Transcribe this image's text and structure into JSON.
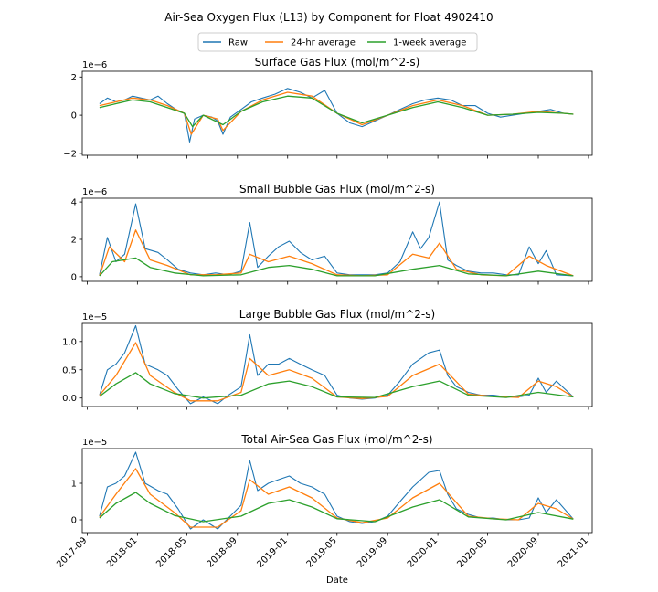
{
  "figure": {
    "title": "Air-Sea Oxygen Flux (L13) by Component for Float 4902410",
    "xlabel": "Date"
  },
  "legend": {
    "placement": "top-center",
    "entries": [
      {
        "name": "Raw",
        "color": "#1f77b4"
      },
      {
        "name": "24-hr average",
        "color": "#ff7f0e"
      },
      {
        "name": "1-week average",
        "color": "#2ca02c"
      }
    ]
  },
  "x_axis": {
    "type": "date",
    "range": [
      "2017-08-20",
      "2021-01-10"
    ],
    "ticks": [
      "2017-09",
      "2018-01",
      "2018-05",
      "2018-09",
      "2019-01",
      "2019-05",
      "2019-09",
      "2020-01",
      "2020-05",
      "2020-09",
      "2021-01"
    ],
    "tick_label_rotation": 45,
    "tick_labels_on_last_panel_only": true
  },
  "chart_data": [
    {
      "type": "line",
      "title": "Surface Gas Flux (mol/m^2-s)",
      "offset_label": "1e−6",
      "ylim": [
        -2.1,
        2.3
      ],
      "yticks": [
        -2,
        0,
        2
      ],
      "ytick_labels": [
        "−2",
        "0",
        "2"
      ],
      "series": [
        {
          "name": "Raw",
          "color": "#1f77b4",
          "x": [
            "2017-10-01",
            "2017-10-20",
            "2017-11-10",
            "2017-12-01",
            "2017-12-20",
            "2018-01-10",
            "2018-02-01",
            "2018-02-20",
            "2018-03-15",
            "2018-04-05",
            "2018-04-25",
            "2018-05-08",
            "2018-05-20",
            "2018-06-10",
            "2018-07-01",
            "2018-07-15",
            "2018-07-28",
            "2018-08-15",
            "2018-09-10",
            "2018-10-05",
            "2018-11-01",
            "2018-12-01",
            "2019-01-01",
            "2019-02-01",
            "2019-03-01",
            "2019-04-01",
            "2019-05-01",
            "2019-06-01",
            "2019-07-01",
            "2019-08-01",
            "2019-09-01",
            "2019-10-01",
            "2019-11-01",
            "2019-12-01",
            "2020-01-01",
            "2020-02-01",
            "2020-03-01",
            "2020-04-01",
            "2020-05-01",
            "2020-06-01",
            "2020-07-01",
            "2020-08-01",
            "2020-09-01",
            "2020-10-01",
            "2020-11-01",
            "2020-11-25"
          ],
          "values": [
            0.6,
            0.9,
            0.7,
            0.8,
            1.0,
            0.9,
            0.8,
            1.0,
            0.6,
            0.3,
            0.1,
            -1.4,
            -0.2,
            0.0,
            -0.1,
            -0.3,
            -1.0,
            -0.1,
            0.3,
            0.7,
            0.9,
            1.1,
            1.4,
            1.2,
            0.9,
            1.3,
            0.1,
            -0.4,
            -0.6,
            -0.3,
            0.0,
            0.3,
            0.6,
            0.8,
            0.9,
            0.8,
            0.5,
            0.5,
            0.1,
            -0.1,
            0.0,
            0.1,
            0.2,
            0.3,
            0.1,
            0.05
          ]
        },
        {
          "name": "24-hr average",
          "color": "#ff7f0e",
          "x": [
            "2017-10-01",
            "2017-11-10",
            "2017-12-20",
            "2018-02-01",
            "2018-03-15",
            "2018-04-25",
            "2018-05-12",
            "2018-06-10",
            "2018-07-15",
            "2018-07-28",
            "2018-09-10",
            "2018-11-01",
            "2019-01-01",
            "2019-03-01",
            "2019-05-01",
            "2019-07-01",
            "2019-09-01",
            "2019-11-01",
            "2020-01-01",
            "2020-03-01",
            "2020-05-01",
            "2020-07-01",
            "2020-09-01",
            "2020-11-01",
            "2020-11-25"
          ],
          "values": [
            0.5,
            0.7,
            0.9,
            0.8,
            0.5,
            0.1,
            -1.0,
            0.0,
            -0.2,
            -0.8,
            0.2,
            0.8,
            1.2,
            1.0,
            0.1,
            -0.5,
            0.0,
            0.5,
            0.8,
            0.5,
            0.0,
            0.05,
            0.2,
            0.1,
            0.05
          ]
        },
        {
          "name": "1-week average",
          "color": "#2ca02c",
          "x": [
            "2017-10-01",
            "2017-11-10",
            "2017-12-20",
            "2018-02-01",
            "2018-03-15",
            "2018-04-25",
            "2018-05-15",
            "2018-06-10",
            "2018-07-28",
            "2018-09-10",
            "2018-11-01",
            "2019-01-01",
            "2019-03-01",
            "2019-05-01",
            "2019-07-01",
            "2019-09-01",
            "2019-11-01",
            "2020-01-01",
            "2020-03-01",
            "2020-05-01",
            "2020-07-01",
            "2020-09-01",
            "2020-11-01",
            "2020-11-25"
          ],
          "values": [
            0.4,
            0.6,
            0.8,
            0.7,
            0.4,
            0.1,
            -0.6,
            0.0,
            -0.5,
            0.2,
            0.7,
            1.0,
            0.9,
            0.1,
            -0.4,
            0.0,
            0.4,
            0.7,
            0.4,
            0.0,
            0.05,
            0.15,
            0.1,
            0.05
          ]
        }
      ]
    },
    {
      "type": "line",
      "title": "Small Bubble Gas Flux (mol/m^2-s)",
      "offset_label": "1e−6",
      "ylim": [
        -0.25,
        4.2
      ],
      "yticks": [
        0,
        2,
        4
      ],
      "ytick_labels": [
        "0",
        "2",
        "4"
      ],
      "series": [
        {
          "name": "Raw",
          "color": "#1f77b4",
          "x": [
            "2017-10-01",
            "2017-10-20",
            "2017-11-10",
            "2017-12-01",
            "2017-12-28",
            "2018-01-20",
            "2018-02-20",
            "2018-03-15",
            "2018-04-10",
            "2018-05-10",
            "2018-06-10",
            "2018-07-10",
            "2018-08-10",
            "2018-09-10",
            "2018-10-01",
            "2018-10-20",
            "2018-11-15",
            "2018-12-10",
            "2019-01-05",
            "2019-02-01",
            "2019-03-01",
            "2019-04-01",
            "2019-05-01",
            "2019-06-01",
            "2019-07-01",
            "2019-08-01",
            "2019-09-01",
            "2019-10-01",
            "2019-11-01",
            "2019-11-20",
            "2019-12-10",
            "2020-01-05",
            "2020-01-25",
            "2020-02-15",
            "2020-03-15",
            "2020-04-15",
            "2020-05-15",
            "2020-06-15",
            "2020-07-15",
            "2020-08-10",
            "2020-09-01",
            "2020-09-20",
            "2020-10-15",
            "2020-11-25"
          ],
          "values": [
            0.1,
            2.1,
            0.8,
            1.2,
            3.9,
            1.5,
            1.3,
            0.9,
            0.4,
            0.2,
            0.1,
            0.2,
            0.1,
            0.3,
            2.9,
            0.5,
            1.1,
            1.6,
            1.9,
            1.3,
            0.9,
            1.1,
            0.2,
            0.1,
            0.1,
            0.1,
            0.2,
            0.8,
            2.4,
            1.5,
            2.1,
            4.0,
            0.9,
            0.6,
            0.3,
            0.2,
            0.2,
            0.1,
            0.1,
            1.6,
            0.7,
            1.4,
            0.1,
            0.05
          ]
        },
        {
          "name": "24-hr average",
          "color": "#ff7f0e",
          "x": [
            "2017-10-01",
            "2017-10-25",
            "2017-12-01",
            "2017-12-28",
            "2018-02-01",
            "2018-03-15",
            "2018-05-10",
            "2018-07-10",
            "2018-09-10",
            "2018-10-01",
            "2018-11-15",
            "2019-01-05",
            "2019-03-01",
            "2019-05-01",
            "2019-07-01",
            "2019-09-01",
            "2019-11-01",
            "2019-12-10",
            "2020-01-05",
            "2020-02-15",
            "2020-04-15",
            "2020-06-15",
            "2020-08-10",
            "2020-09-20",
            "2020-11-25"
          ],
          "values": [
            0.05,
            1.6,
            0.8,
            2.5,
            0.9,
            0.6,
            0.1,
            0.1,
            0.2,
            1.2,
            0.8,
            1.1,
            0.7,
            0.1,
            0.05,
            0.1,
            1.2,
            1.0,
            1.8,
            0.4,
            0.1,
            0.05,
            1.1,
            0.6,
            0.05
          ]
        },
        {
          "name": "1-week average",
          "color": "#2ca02c",
          "x": [
            "2017-10-01",
            "2017-11-01",
            "2017-12-28",
            "2018-02-01",
            "2018-04-01",
            "2018-06-10",
            "2018-09-10",
            "2018-11-15",
            "2019-01-05",
            "2019-03-01",
            "2019-05-01",
            "2019-08-01",
            "2019-11-01",
            "2020-01-05",
            "2020-03-15",
            "2020-06-15",
            "2020-09-01",
            "2020-11-25"
          ],
          "values": [
            0.05,
            0.8,
            1.0,
            0.5,
            0.2,
            0.05,
            0.1,
            0.5,
            0.6,
            0.4,
            0.05,
            0.05,
            0.4,
            0.6,
            0.15,
            0.05,
            0.3,
            0.05
          ]
        }
      ]
    },
    {
      "type": "line",
      "title": "Large Bubble Gas Flux (mol/m^2-s)",
      "offset_label": "1e−5",
      "ylim": [
        -0.15,
        1.32
      ],
      "yticks": [
        0.0,
        0.5,
        1.0
      ],
      "ytick_labels": [
        "0.0",
        "0.5",
        "1.0"
      ],
      "series": [
        {
          "name": "Raw",
          "color": "#1f77b4",
          "x": [
            "2017-10-01",
            "2017-10-20",
            "2017-11-10",
            "2017-12-01",
            "2017-12-28",
            "2018-01-20",
            "2018-02-20",
            "2018-03-15",
            "2018-04-10",
            "2018-05-10",
            "2018-06-10",
            "2018-07-15",
            "2018-08-10",
            "2018-09-10",
            "2018-10-01",
            "2018-10-20",
            "2018-11-15",
            "2018-12-10",
            "2019-01-05",
            "2019-02-01",
            "2019-03-01",
            "2019-04-01",
            "2019-05-01",
            "2019-06-01",
            "2019-07-01",
            "2019-08-01",
            "2019-09-01",
            "2019-10-01",
            "2019-11-01",
            "2019-12-10",
            "2020-01-05",
            "2020-01-25",
            "2020-02-15",
            "2020-03-15",
            "2020-04-15",
            "2020-05-15",
            "2020-06-15",
            "2020-07-15",
            "2020-08-10",
            "2020-09-01",
            "2020-09-20",
            "2020-10-15",
            "2020-11-25"
          ],
          "values": [
            0.05,
            0.5,
            0.6,
            0.8,
            1.28,
            0.6,
            0.5,
            0.4,
            0.15,
            -0.1,
            0.02,
            -0.1,
            0.05,
            0.2,
            1.12,
            0.4,
            0.6,
            0.6,
            0.7,
            0.6,
            0.5,
            0.4,
            0.05,
            0.0,
            -0.02,
            0.0,
            0.05,
            0.3,
            0.6,
            0.8,
            0.85,
            0.4,
            0.2,
            0.1,
            0.05,
            0.05,
            0.02,
            0.02,
            0.05,
            0.35,
            0.1,
            0.3,
            0.02
          ]
        },
        {
          "name": "24-hr average",
          "color": "#ff7f0e",
          "x": [
            "2017-10-01",
            "2017-11-10",
            "2017-12-28",
            "2018-02-01",
            "2018-04-01",
            "2018-05-10",
            "2018-07-15",
            "2018-09-10",
            "2018-10-01",
            "2018-11-15",
            "2019-01-05",
            "2019-03-01",
            "2019-05-01",
            "2019-07-01",
            "2019-09-01",
            "2019-11-01",
            "2020-01-05",
            "2020-03-15",
            "2020-05-15",
            "2020-07-15",
            "2020-09-01",
            "2020-10-15",
            "2020-11-25"
          ],
          "values": [
            0.05,
            0.4,
            0.98,
            0.4,
            0.1,
            -0.05,
            -0.05,
            0.1,
            0.7,
            0.4,
            0.5,
            0.35,
            0.02,
            -0.01,
            0.03,
            0.4,
            0.6,
            0.07,
            0.03,
            0.01,
            0.3,
            0.2,
            0.02
          ]
        },
        {
          "name": "1-week average",
          "color": "#2ca02c",
          "x": [
            "2017-10-01",
            "2017-11-10",
            "2017-12-28",
            "2018-02-01",
            "2018-04-01",
            "2018-06-10",
            "2018-09-10",
            "2018-11-15",
            "2019-01-05",
            "2019-03-01",
            "2019-05-01",
            "2019-08-01",
            "2019-11-01",
            "2020-01-05",
            "2020-03-15",
            "2020-06-15",
            "2020-09-01",
            "2020-11-25"
          ],
          "values": [
            0.03,
            0.25,
            0.45,
            0.25,
            0.08,
            0.0,
            0.05,
            0.25,
            0.3,
            0.2,
            0.02,
            0.01,
            0.2,
            0.3,
            0.05,
            0.01,
            0.1,
            0.02
          ]
        }
      ]
    },
    {
      "type": "line",
      "title": "Total Air-Sea Gas Flux (mol/m^2-s)",
      "offset_label": "1e−5",
      "ylim": [
        -0.35,
        1.95
      ],
      "yticks": [
        0,
        1
      ],
      "ytick_labels": [
        "0",
        "1"
      ],
      "series": [
        {
          "name": "Raw",
          "color": "#1f77b4",
          "x": [
            "2017-10-01",
            "2017-10-20",
            "2017-11-10",
            "2017-12-01",
            "2017-12-28",
            "2018-01-20",
            "2018-02-20",
            "2018-03-15",
            "2018-04-10",
            "2018-05-10",
            "2018-06-10",
            "2018-07-15",
            "2018-08-10",
            "2018-09-10",
            "2018-10-01",
            "2018-10-20",
            "2018-11-15",
            "2018-12-10",
            "2019-01-05",
            "2019-02-01",
            "2019-03-01",
            "2019-04-01",
            "2019-05-01",
            "2019-06-01",
            "2019-07-01",
            "2019-08-01",
            "2019-09-01",
            "2019-10-01",
            "2019-11-01",
            "2019-12-10",
            "2020-01-05",
            "2020-01-25",
            "2020-02-15",
            "2020-03-15",
            "2020-04-15",
            "2020-05-15",
            "2020-06-15",
            "2020-07-15",
            "2020-08-10",
            "2020-09-01",
            "2020-09-20",
            "2020-10-15",
            "2020-11-25"
          ],
          "values": [
            0.1,
            0.9,
            1.0,
            1.2,
            1.85,
            1.0,
            0.8,
            0.7,
            0.3,
            -0.25,
            0.0,
            -0.25,
            0.05,
            0.4,
            1.62,
            0.8,
            1.0,
            1.1,
            1.2,
            1.0,
            0.9,
            0.7,
            0.1,
            -0.05,
            -0.1,
            -0.05,
            0.1,
            0.5,
            0.9,
            1.3,
            1.35,
            0.7,
            0.3,
            0.15,
            0.05,
            0.05,
            0.0,
            0.0,
            0.05,
            0.6,
            0.2,
            0.55,
            0.02
          ]
        },
        {
          "name": "24-hr average",
          "color": "#ff7f0e",
          "x": [
            "2017-10-01",
            "2017-11-10",
            "2017-12-28",
            "2018-02-01",
            "2018-04-01",
            "2018-05-10",
            "2018-07-15",
            "2018-09-10",
            "2018-10-01",
            "2018-11-15",
            "2019-01-05",
            "2019-03-01",
            "2019-05-01",
            "2019-07-01",
            "2019-09-01",
            "2019-11-01",
            "2020-01-05",
            "2020-03-15",
            "2020-05-15",
            "2020-07-15",
            "2020-09-01",
            "2020-10-15",
            "2020-11-25"
          ],
          "values": [
            0.08,
            0.7,
            1.4,
            0.7,
            0.2,
            -0.2,
            -0.2,
            0.25,
            1.1,
            0.7,
            0.9,
            0.6,
            0.05,
            -0.08,
            0.05,
            0.6,
            1.0,
            0.1,
            0.03,
            0.0,
            0.45,
            0.3,
            0.02
          ]
        },
        {
          "name": "1-week average",
          "color": "#2ca02c",
          "x": [
            "2017-10-01",
            "2017-11-10",
            "2017-12-28",
            "2018-02-01",
            "2018-04-01",
            "2018-06-10",
            "2018-09-10",
            "2018-11-15",
            "2019-01-05",
            "2019-03-01",
            "2019-05-01",
            "2019-08-01",
            "2019-11-01",
            "2020-01-05",
            "2020-03-15",
            "2020-06-15",
            "2020-09-01",
            "2020-11-25"
          ],
          "values": [
            0.05,
            0.45,
            0.75,
            0.45,
            0.12,
            -0.05,
            0.1,
            0.45,
            0.55,
            0.35,
            0.03,
            -0.05,
            0.35,
            0.55,
            0.08,
            0.0,
            0.2,
            0.02
          ]
        }
      ]
    }
  ]
}
